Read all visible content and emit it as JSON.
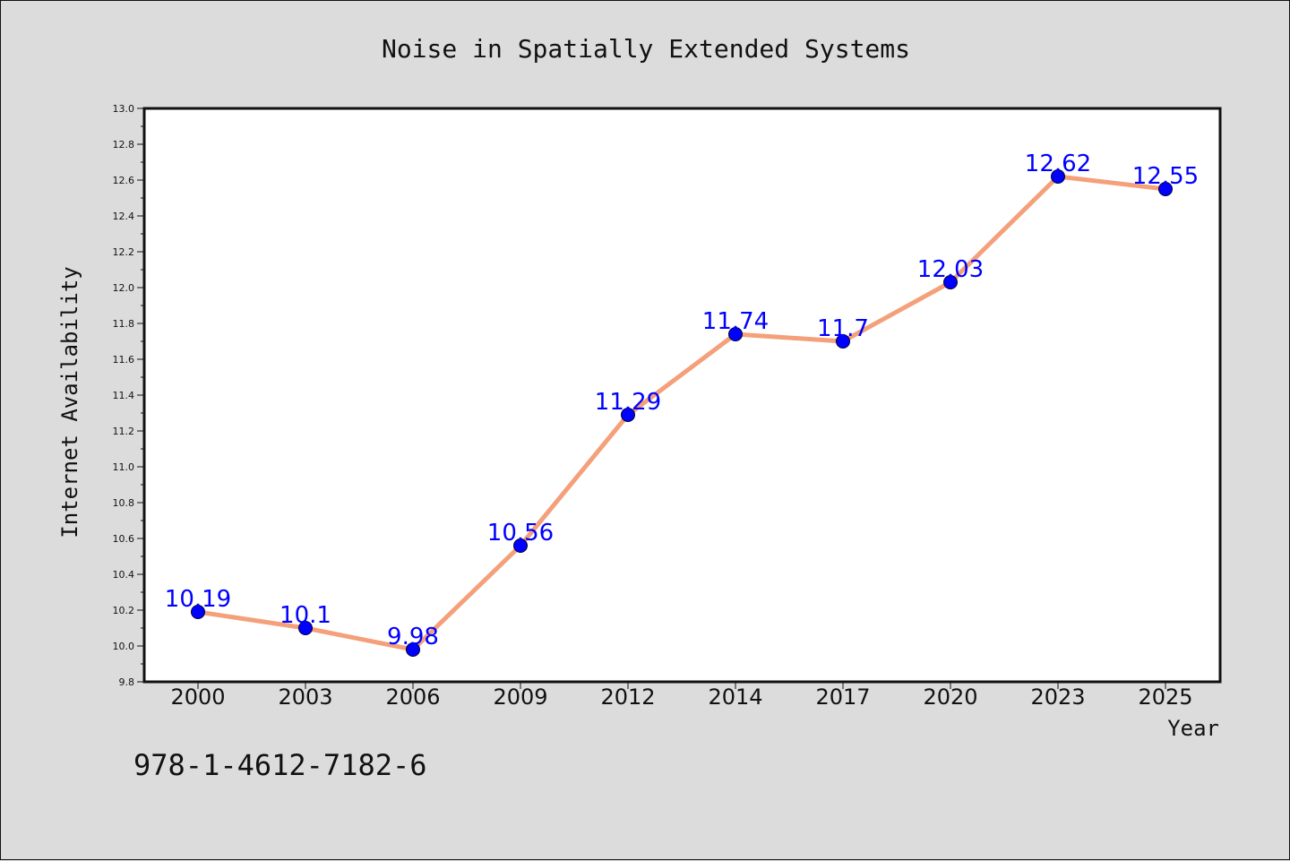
{
  "chart_data": {
    "type": "line",
    "title": "Noise in Spatially Extended Systems",
    "xlabel": "Year",
    "ylabel": "Internet Availability",
    "categories": [
      "2000",
      "2003",
      "2006",
      "2009",
      "2012",
      "2014",
      "2017",
      "2020",
      "2023",
      "2025"
    ],
    "series": [
      {
        "values": [
          10.19,
          10.1,
          9.98,
          10.56,
          11.29,
          11.74,
          11.7,
          12.03,
          12.62,
          12.55
        ],
        "labels": [
          "10.19",
          "10.1",
          "9.98",
          "10.56",
          "11.29",
          "11.74",
          "11.7",
          "12.03",
          "12.62",
          "12.55"
        ],
        "line_color": "#f4a07a",
        "marker_color": "#0000ff"
      }
    ],
    "ylim": [
      9.8,
      13.0
    ],
    "yticks": [
      "9.8",
      "10.0",
      "10.2",
      "10.4",
      "10.6",
      "10.8",
      "11.0",
      "11.2",
      "11.4",
      "11.6",
      "11.8",
      "12.0",
      "12.2",
      "12.4",
      "12.6",
      "12.8",
      "13.0"
    ],
    "grid": false,
    "legend": "none"
  },
  "footer": {
    "isbn": "978-1-4612-7182-6"
  },
  "colors": {
    "background": "#dcdcdc",
    "plot_background": "#ffffff",
    "axis": "#111111",
    "label": "#0000ff"
  }
}
